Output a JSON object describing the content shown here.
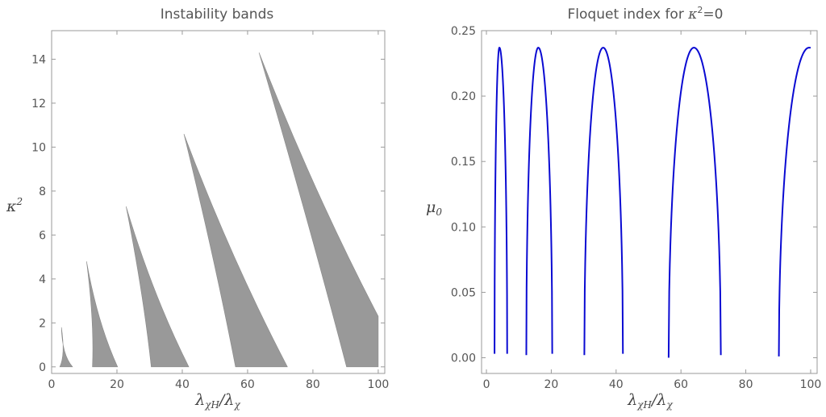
{
  "chart_data": [
    {
      "type": "area",
      "title": "Instability bands",
      "xlabel": "λχH/λχ",
      "ylabel": "κ2",
      "xlim": [
        0,
        102
      ],
      "ylim": [
        -0.3,
        15.3
      ],
      "xticks": [
        0,
        20,
        40,
        60,
        80,
        100
      ],
      "yticks": [
        0,
        2,
        4,
        6,
        8,
        10,
        12,
        14
      ],
      "fill_color": "#999999",
      "bands": [
        {
          "tip": [
            3.0,
            1.8
          ],
          "bottom_left": 2.5,
          "bottom_right": 6.4,
          "right_top": 0.0
        },
        {
          "tip": [
            10.7,
            4.8
          ],
          "bottom_left": 12.5,
          "bottom_right": 20.2,
          "right_top": 0.0
        },
        {
          "tip": [
            22.8,
            7.3
          ],
          "bottom_left": 30.5,
          "bottom_right": 42.0,
          "right_top": 0.0
        },
        {
          "tip": [
            40.5,
            10.6
          ],
          "bottom_left": 56.3,
          "bottom_right": 72.2,
          "right_top": 0.0
        },
        {
          "tip": [
            63.5,
            14.3
          ],
          "bottom_left": 90.3,
          "bottom_right": 100.0,
          "right_top": 2.3
        }
      ]
    },
    {
      "type": "line",
      "title": "Floquet index for κ2=0",
      "xlabel": "λχH/λχ",
      "ylabel": "μ0",
      "xlim": [
        -1.5,
        102
      ],
      "ylim": [
        -0.012,
        0.25
      ],
      "xticks": [
        0,
        20,
        40,
        60,
        80,
        100
      ],
      "yticks": [
        "0.00",
        "0.05",
        "0.10",
        "0.15",
        "0.20",
        "0.25"
      ],
      "line_color": "#0a0ad2",
      "arches": [
        {
          "left": 2.5,
          "right": 6.4,
          "peak_x": 4.0,
          "peak": 0.237,
          "start": 0.003,
          "end": 0.003
        },
        {
          "left": 12.3,
          "right": 20.3,
          "peak_x": 16.0,
          "peak": 0.237,
          "start": 0.002,
          "end": 0.003
        },
        {
          "left": 30.2,
          "right": 42.1,
          "peak_x": 36.0,
          "peak": 0.237,
          "start": 0.002,
          "end": 0.003
        },
        {
          "left": 56.2,
          "right": 72.3,
          "peak_x": 64.0,
          "peak": 0.237,
          "start": 0.0,
          "end": 0.002
        },
        {
          "left": 90.2,
          "right": 100.0,
          "peak_x": 99.5,
          "peak": 0.237,
          "start": 0.001,
          "end": 0.237
        }
      ]
    }
  ]
}
